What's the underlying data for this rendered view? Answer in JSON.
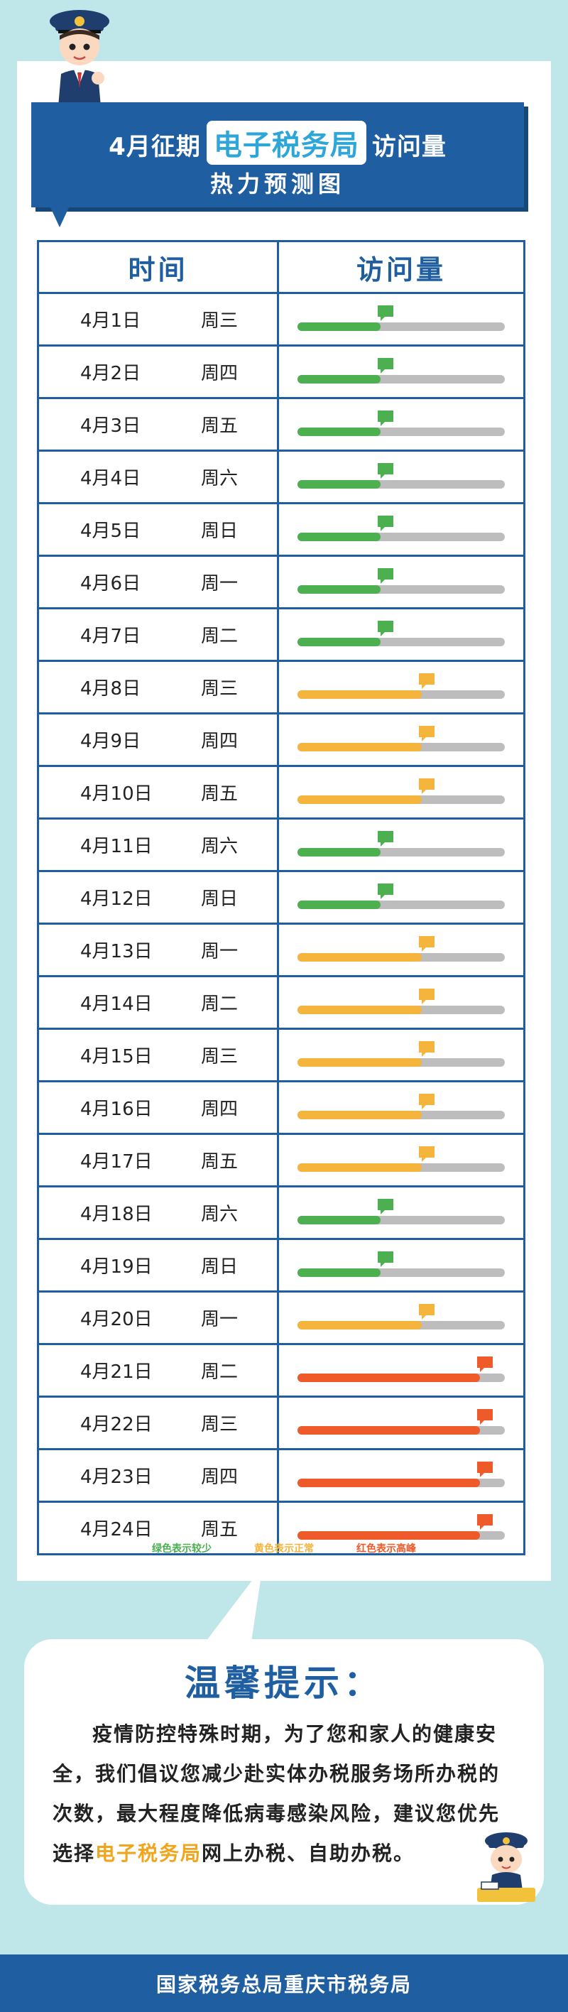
{
  "banner": {
    "line1_prefix": "4月征期",
    "line1_highlight": "电子税务局",
    "line1_suffix": "访问量",
    "line2": "热力预测图"
  },
  "table": {
    "header_time": "时间",
    "header_visits": "访问量",
    "rows": [
      {
        "date": "4月1日",
        "weekday": "周三",
        "level": "low"
      },
      {
        "date": "4月2日",
        "weekday": "周四",
        "level": "low"
      },
      {
        "date": "4月3日",
        "weekday": "周五",
        "level": "low"
      },
      {
        "date": "4月4日",
        "weekday": "周六",
        "level": "low"
      },
      {
        "date": "4月5日",
        "weekday": "周日",
        "level": "low"
      },
      {
        "date": "4月6日",
        "weekday": "周一",
        "level": "low"
      },
      {
        "date": "4月7日",
        "weekday": "周二",
        "level": "low"
      },
      {
        "date": "4月8日",
        "weekday": "周三",
        "level": "normal"
      },
      {
        "date": "4月9日",
        "weekday": "周四",
        "level": "normal"
      },
      {
        "date": "4月10日",
        "weekday": "周五",
        "level": "normal"
      },
      {
        "date": "4月11日",
        "weekday": "周六",
        "level": "low"
      },
      {
        "date": "4月12日",
        "weekday": "周日",
        "level": "low"
      },
      {
        "date": "4月13日",
        "weekday": "周一",
        "level": "normal"
      },
      {
        "date": "4月14日",
        "weekday": "周二",
        "level": "normal"
      },
      {
        "date": "4月15日",
        "weekday": "周三",
        "level": "normal"
      },
      {
        "date": "4月16日",
        "weekday": "周四",
        "level": "normal"
      },
      {
        "date": "4月17日",
        "weekday": "周五",
        "level": "normal"
      },
      {
        "date": "4月18日",
        "weekday": "周六",
        "level": "low"
      },
      {
        "date": "4月19日",
        "weekday": "周日",
        "level": "low"
      },
      {
        "date": "4月20日",
        "weekday": "周一",
        "level": "normal"
      },
      {
        "date": "4月21日",
        "weekday": "周二",
        "level": "high"
      },
      {
        "date": "4月22日",
        "weekday": "周三",
        "level": "high"
      },
      {
        "date": "4月23日",
        "weekday": "周四",
        "level": "high"
      },
      {
        "date": "4月24日",
        "weekday": "周五",
        "level": "high"
      }
    ]
  },
  "levels": {
    "low": {
      "fill": 0.4,
      "color": "#4caf50"
    },
    "normal": {
      "fill": 0.6,
      "color": "#f5b43c"
    },
    "high": {
      "fill": 0.88,
      "color": "#ee5a2a"
    }
  },
  "legend": {
    "low": "绿色表示较少",
    "normal": "黄色表示正常",
    "high": "红色表示高峰"
  },
  "tip": {
    "title": "温馨提示：",
    "body_before": "疫情防控特殊时期，为了您和家人的健康安全，我们倡议您减少赴实体办税服务场所办税的次数，最大程度降低病毒感染风险，建议您优先选择",
    "body_highlight": "电子税务局",
    "body_after": "网上办税、自助办税。"
  },
  "footer": {
    "text": "国家税务总局重庆市税务局"
  },
  "colors": {
    "primary": "#1f5fa1",
    "background": "#bfe6e8",
    "bar_bg": "#bdbdbd"
  },
  "icons": {
    "mascot_top": "tax-officer-mascot-icon",
    "mascot_bottom": "tax-officer-desk-mascot-icon"
  }
}
